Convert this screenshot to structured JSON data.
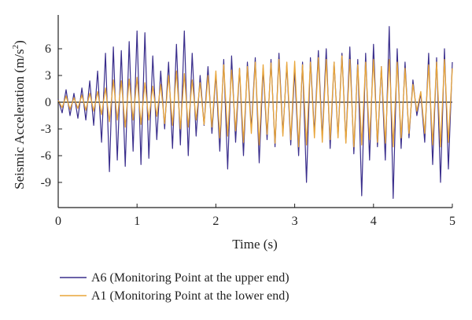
{
  "chart_data": {
    "type": "line",
    "xlabel": "Time (s)",
    "ylabel_main": "Seismic Acceleration (m/s",
    "ylabel_sup": "2",
    "ylabel_end": ")",
    "xlim": [
      0,
      5
    ],
    "ylim": [
      -11,
      9
    ],
    "xticks": [
      "0",
      "1",
      "2",
      "3",
      "4",
      "5"
    ],
    "yticks": [
      "6",
      "3",
      "0",
      "-3",
      "-6",
      "-9"
    ],
    "grid": false,
    "legend_position": "bottom-left",
    "series": [
      {
        "name": "A6 (Monitoring Point at the upper end)",
        "color": "#3a2e8c",
        "x": [
          0.0,
          0.05,
          0.1,
          0.15,
          0.2,
          0.25,
          0.3,
          0.35,
          0.4,
          0.45,
          0.5,
          0.55,
          0.6,
          0.65,
          0.7,
          0.75,
          0.8,
          0.85,
          0.9,
          0.95,
          1.0,
          1.05,
          1.1,
          1.15,
          1.2,
          1.25,
          1.3,
          1.35,
          1.4,
          1.45,
          1.5,
          1.55,
          1.6,
          1.65,
          1.7,
          1.75,
          1.8,
          1.85,
          1.9,
          1.95,
          2.0,
          2.05,
          2.1,
          2.15,
          2.2,
          2.25,
          2.3,
          2.35,
          2.4,
          2.45,
          2.5,
          2.55,
          2.6,
          2.65,
          2.7,
          2.75,
          2.8,
          2.85,
          2.9,
          2.95,
          3.0,
          3.05,
          3.1,
          3.15,
          3.2,
          3.25,
          3.3,
          3.35,
          3.4,
          3.45,
          3.5,
          3.55,
          3.6,
          3.65,
          3.7,
          3.75,
          3.8,
          3.85,
          3.9,
          3.95,
          4.0,
          4.05,
          4.1,
          4.15,
          4.2,
          4.25,
          4.3,
          4.35,
          4.4,
          4.45,
          4.5,
          4.55,
          4.6,
          4.65,
          4.7,
          4.75,
          4.8,
          4.85,
          4.9,
          4.95,
          5.0
        ],
        "y": [
          0.3,
          -1.2,
          1.4,
          -1.5,
          1.0,
          -1.8,
          1.6,
          -2.0,
          2.4,
          -2.6,
          3.5,
          -4.5,
          5.5,
          -7.8,
          6.2,
          -6.5,
          5.8,
          -7.2,
          6.8,
          -5.5,
          8.0,
          -7.0,
          7.8,
          -6.3,
          5.2,
          -4.2,
          3.5,
          -3.0,
          4.5,
          -5.2,
          6.5,
          -4.8,
          8.0,
          -6.0,
          5.5,
          -3.8,
          3.0,
          -2.6,
          4.0,
          -3.5,
          3.2,
          -5.5,
          4.8,
          -7.5,
          5.2,
          -4.5,
          3.8,
          -6.0,
          4.5,
          -3.0,
          5.0,
          -6.8,
          3.8,
          -4.2,
          4.8,
          -5.0,
          5.5,
          -3.5,
          4.2,
          -4.8,
          3.6,
          -6.0,
          4.5,
          -9.0,
          5.0,
          -3.5,
          5.8,
          -4.0,
          6.0,
          -5.2,
          4.5,
          -3.8,
          5.5,
          -4.5,
          6.2,
          -5.8,
          4.8,
          -10.5,
          5.5,
          -6.5,
          6.5,
          -5.0,
          4.0,
          -6.5,
          8.5,
          -10.8,
          6.0,
          -5.2,
          4.5,
          -4.0,
          2.5,
          -1.5,
          1.0,
          -4.5,
          5.5,
          -7.0,
          5.0,
          -9.0,
          6.0,
          -7.5,
          4.5
        ]
      },
      {
        "name": "A1 (Monitoring Point at the lower end)",
        "color": "#e8a53a",
        "x": [
          0.0,
          0.05,
          0.1,
          0.15,
          0.2,
          0.25,
          0.3,
          0.35,
          0.4,
          0.45,
          0.5,
          0.55,
          0.6,
          0.65,
          0.7,
          0.75,
          0.8,
          0.85,
          0.9,
          0.95,
          1.0,
          1.05,
          1.1,
          1.15,
          1.2,
          1.25,
          1.3,
          1.35,
          1.4,
          1.45,
          1.5,
          1.55,
          1.6,
          1.65,
          1.7,
          1.75,
          1.8,
          1.85,
          1.9,
          1.95,
          2.0,
          2.05,
          2.1,
          2.15,
          2.2,
          2.25,
          2.3,
          2.35,
          2.4,
          2.45,
          2.5,
          2.55,
          2.6,
          2.65,
          2.7,
          2.75,
          2.8,
          2.85,
          2.9,
          2.95,
          3.0,
          3.05,
          3.1,
          3.15,
          3.2,
          3.25,
          3.3,
          3.35,
          3.4,
          3.45,
          3.5,
          3.55,
          3.6,
          3.65,
          3.7,
          3.75,
          3.8,
          3.85,
          3.9,
          3.95,
          4.0,
          4.05,
          4.1,
          4.15,
          4.2,
          4.25,
          4.3,
          4.35,
          4.4,
          4.45,
          4.5,
          4.55,
          4.6,
          4.65,
          4.7,
          4.75,
          4.8,
          4.85,
          4.9,
          4.95,
          5.0
        ],
        "y": [
          0.2,
          -0.6,
          0.7,
          -0.8,
          0.5,
          -0.7,
          0.8,
          -0.9,
          1.0,
          -1.0,
          1.2,
          -1.4,
          1.6,
          -2.2,
          2.5,
          -2.0,
          2.4,
          -2.8,
          2.6,
          -2.0,
          2.8,
          -2.5,
          2.2,
          -2.0,
          1.8,
          -1.6,
          2.0,
          -2.4,
          3.0,
          -2.6,
          3.5,
          -3.0,
          3.2,
          -2.8,
          2.5,
          -2.0,
          2.2,
          -2.5,
          3.0,
          -2.8,
          3.5,
          -4.0,
          4.2,
          -3.8,
          3.6,
          -3.2,
          3.8,
          -4.5,
          4.0,
          -3.5,
          4.5,
          -4.8,
          4.2,
          -3.6,
          4.4,
          -4.6,
          4.8,
          -3.8,
          4.5,
          -4.2,
          4.6,
          -5.0,
          4.2,
          -4.8,
          4.5,
          -4.0,
          5.0,
          -4.5,
          4.8,
          -4.2,
          4.5,
          -4.0,
          5.2,
          -4.6,
          4.8,
          -5.0,
          4.2,
          -4.8,
          4.5,
          -4.2,
          4.8,
          -4.5,
          4.0,
          -4.6,
          4.8,
          -5.0,
          4.5,
          -4.0,
          3.8,
          -3.5,
          2.0,
          -1.0,
          1.2,
          -3.5,
          4.2,
          -4.8,
          4.5,
          -5.0,
          4.8,
          -4.5,
          3.8
        ]
      }
    ]
  }
}
